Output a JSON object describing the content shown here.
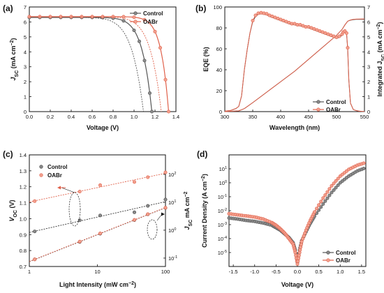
{
  "colors": {
    "control": "#555555",
    "oabr": "#e0604a",
    "oabr_light": "#f2a08e"
  },
  "chart_data": [
    {
      "panel": "(a)",
      "type": "line",
      "xlabel": "Voltage (V)",
      "ylabel_main": "J",
      "ylabel_sub": "SC",
      "ylabel_unit": " (mA cm",
      "ylabel_exp": "−2",
      "ylabel_close": ")",
      "xlim": [
        0,
        1.4
      ],
      "ylim": [
        0,
        7
      ],
      "xticks": [
        "0.0",
        "0.2",
        "0.4",
        "0.6",
        "0.8",
        "1.0",
        "1.2",
        "1.4"
      ],
      "yticks": [
        "0",
        "1",
        "2",
        "3",
        "4",
        "5",
        "6",
        "7"
      ],
      "legend": [
        "Control",
        "OABr"
      ],
      "series": [
        {
          "name": "Control",
          "style": "solid-markers",
          "voc": 1.17,
          "jsc": 6.3,
          "n": 1.9,
          "x": [
            0.0,
            0.1,
            0.2,
            0.3,
            0.4,
            0.5,
            0.6,
            0.7,
            0.8,
            0.9,
            1.0,
            1.05,
            1.1,
            1.15,
            1.17
          ]
        },
        {
          "name": "Control",
          "style": "dashed",
          "voc": 1.09,
          "jsc": 6.3,
          "n": 2.6
        },
        {
          "name": "OABr",
          "style": "solid-markers",
          "voc": 1.33,
          "jsc": 6.35,
          "n": 1.5,
          "x": [
            0.0,
            0.1,
            0.2,
            0.3,
            0.4,
            0.5,
            0.6,
            0.7,
            0.8,
            0.9,
            1.0,
            1.1,
            1.2,
            1.25,
            1.3,
            1.33
          ]
        },
        {
          "name": "OABr",
          "style": "dashed",
          "voc": 1.26,
          "jsc": 6.35,
          "n": 2.0
        }
      ]
    },
    {
      "panel": "(b)",
      "type": "line",
      "xlabel": "Wavelength (nm)",
      "ylabel": "EQE (%)",
      "y2label_main": "Integrated J",
      "y2label_sub": "SC",
      "y2label_unit": " (mA cm",
      "y2label_exp": "−2",
      "y2label_close": ")",
      "xlim": [
        300,
        550
      ],
      "ylim": [
        0,
        100
      ],
      "y2lim": [
        0,
        7
      ],
      "xticks": [
        "300",
        "350",
        "400",
        "450",
        "500",
        "550"
      ],
      "yticks": [
        "0",
        "20",
        "40",
        "60",
        "80",
        "100"
      ],
      "y2ticks": [
        "0",
        "1",
        "2",
        "3",
        "4",
        "5",
        "6",
        "7"
      ],
      "legend": [
        "Control",
        "OABr"
      ],
      "eqe": {
        "x": [
          300,
          305,
          310,
          315,
          320,
          325,
          330,
          335,
          340,
          345,
          350,
          355,
          360,
          365,
          370,
          375,
          380,
          385,
          390,
          395,
          400,
          405,
          410,
          415,
          420,
          425,
          430,
          435,
          440,
          445,
          450,
          455,
          460,
          465,
          470,
          475,
          480,
          485,
          490,
          495,
          500,
          505,
          510,
          512,
          515,
          518,
          520,
          522,
          525,
          530,
          535,
          540,
          545,
          550
        ],
        "control": [
          0.5,
          0.7,
          1,
          2,
          3,
          5,
          15,
          40,
          59,
          75,
          86,
          91,
          93,
          93.5,
          93,
          92.5,
          91,
          90,
          89,
          88,
          87,
          86,
          85,
          84,
          83,
          83,
          82,
          82,
          81,
          80.5,
          80,
          79,
          78,
          77,
          76,
          75,
          74,
          73,
          72,
          71,
          70,
          71,
          73,
          75,
          76,
          74,
          60,
          30,
          8,
          2,
          1,
          0.5,
          0.3,
          0.2
        ],
        "oabr": [
          0.5,
          0.7,
          1,
          2,
          3,
          5,
          15,
          40,
          59,
          75,
          87,
          92,
          94,
          94.5,
          94,
          93.5,
          92,
          91,
          90,
          89,
          88,
          87,
          86,
          85,
          84,
          84,
          83,
          83,
          82,
          81,
          81,
          80,
          79,
          78,
          77,
          76,
          75,
          74,
          73,
          72,
          71,
          72,
          74,
          76,
          77,
          75,
          61,
          31,
          8,
          2,
          1,
          0.5,
          0.3,
          0.2
        ]
      },
      "integrated": {
        "x": [
          300,
          325,
          335,
          350,
          375,
          400,
          425,
          450,
          475,
          500,
          510,
          515,
          520,
          525,
          530,
          535,
          550
        ],
        "control": [
          0,
          0.05,
          0.2,
          0.6,
          1.3,
          2.0,
          2.7,
          3.5,
          4.3,
          5.1,
          5.5,
          5.8,
          6.05,
          6.12,
          6.15,
          6.17,
          6.17
        ],
        "oabr": [
          0,
          0.05,
          0.2,
          0.6,
          1.3,
          2.0,
          2.7,
          3.5,
          4.3,
          5.1,
          5.5,
          5.8,
          6.05,
          6.13,
          6.17,
          6.19,
          6.2
        ]
      }
    },
    {
      "panel": "(c)",
      "type": "scatter",
      "xlabel": "Light Intensity (mW cm",
      "xlabel_exp": "−2",
      "xlabel_close": ")",
      "ylabel_main": "V",
      "ylabel_sub": "OC",
      "ylabel_unit": " (V)",
      "y2label_main": "J",
      "y2label_sub": "SC",
      "y2label_unit": " mA cm",
      "y2label_exp": "−2",
      "xscale": "log",
      "xlim": [
        1,
        100
      ],
      "ylim": [
        0.7,
        1.4
      ],
      "y2scale": "log",
      "y2lim": [
        0.05,
        500
      ],
      "xticks": [
        "1",
        "10",
        "100"
      ],
      "yticks": [
        "0.7",
        "0.8",
        "0.9",
        "1.0",
        "1.1",
        "1.2",
        "1.3",
        "1.4"
      ],
      "y2ticks": [
        {
          "base": "10",
          "exp": "-1"
        },
        {
          "base": "10",
          "exp": "0"
        },
        {
          "base": "10",
          "exp": "1"
        },
        {
          "base": "10",
          "exp": "2"
        }
      ],
      "legend": [
        "Control",
        "OABr"
      ],
      "series": [
        {
          "name": "Control",
          "quantity": "Voc",
          "x": [
            1.2,
            5.5,
            11,
            35,
            55,
            100
          ],
          "y": [
            0.92,
            0.99,
            1.02,
            1.04,
            1.08,
            1.12
          ]
        },
        {
          "name": "OABr",
          "quantity": "Voc",
          "x": [
            1.2,
            5.5,
            11,
            35,
            55,
            100
          ],
          "y": [
            1.11,
            1.17,
            1.21,
            1.23,
            1.26,
            1.29
          ]
        },
        {
          "name": "Control",
          "quantity": "Jsc",
          "x": [
            1.2,
            5.5,
            11,
            35,
            55,
            100
          ],
          "y": [
            0.09,
            0.38,
            0.75,
            2.3,
            3.7,
            6.3
          ]
        },
        {
          "name": "OABr",
          "quantity": "Jsc",
          "x": [
            1.2,
            5.5,
            11,
            35,
            55,
            100
          ],
          "y": [
            0.09,
            0.39,
            0.77,
            2.35,
            3.75,
            6.35
          ]
        }
      ]
    },
    {
      "panel": "(d)",
      "type": "line",
      "xlabel": "Voltage (V)",
      "ylabel": "Current Density (A cm",
      "ylabel_exp": "−2",
      "ylabel_close": ")",
      "xlim": [
        -1.6,
        1.6
      ],
      "yscale": "log",
      "ylim": [
        1e-06,
        100
      ],
      "xticks": [
        "-1.5",
        "-1.0",
        "-0.5",
        "0.0",
        "0.5",
        "1.0",
        "1.5"
      ],
      "yticks": [
        {
          "base": "10",
          "exp": "-5"
        },
        {
          "base": "10",
          "exp": "-4"
        },
        {
          "base": "10",
          "exp": "-3"
        },
        {
          "base": "10",
          "exp": "-2"
        },
        {
          "base": "10",
          "exp": "-1"
        },
        {
          "base": "10",
          "exp": "0"
        },
        {
          "base": "10",
          "exp": "1"
        }
      ],
      "legend": [
        "Control",
        "OABr"
      ],
      "series": [
        {
          "name": "Control",
          "x": [
            -1.6,
            -1.4,
            -1.2,
            -1.0,
            -0.8,
            -0.6,
            -0.5,
            -0.4,
            -0.3,
            -0.2,
            -0.1,
            -0.05,
            0.0,
            0.05,
            0.1,
            0.2,
            0.3,
            0.4,
            0.6,
            0.8,
            1.0,
            1.2,
            1.4,
            1.6
          ],
          "y": [
            0.003,
            0.0025,
            0.002,
            0.0017,
            0.0013,
            0.0009,
            0.0006,
            0.0004,
            0.00022,
            0.00012,
            5e-05,
            1.5e-05,
            2e-06,
            1.5e-05,
            7e-05,
            0.0003,
            0.0012,
            0.004,
            0.03,
            0.2,
            1.0,
            3.0,
            7.0,
            12.0
          ]
        },
        {
          "name": "OABr",
          "x": [
            -1.6,
            -1.4,
            -1.2,
            -1.0,
            -0.8,
            -0.6,
            -0.5,
            -0.4,
            -0.3,
            -0.2,
            -0.1,
            -0.05,
            0.0,
            0.05,
            0.1,
            0.2,
            0.3,
            0.4,
            0.6,
            0.8,
            1.0,
            1.2,
            1.4,
            1.6
          ],
          "y": [
            0.006,
            0.005,
            0.0042,
            0.0035,
            0.0025,
            0.0014,
            0.0009,
            0.0005,
            0.00025,
            0.0001,
            4e-05,
            1e-05,
            1.5e-06,
            1e-05,
            6e-05,
            0.0004,
            0.002,
            0.008,
            0.08,
            0.6,
            3.0,
            9.0,
            18.0,
            28.0
          ]
        }
      ]
    }
  ]
}
